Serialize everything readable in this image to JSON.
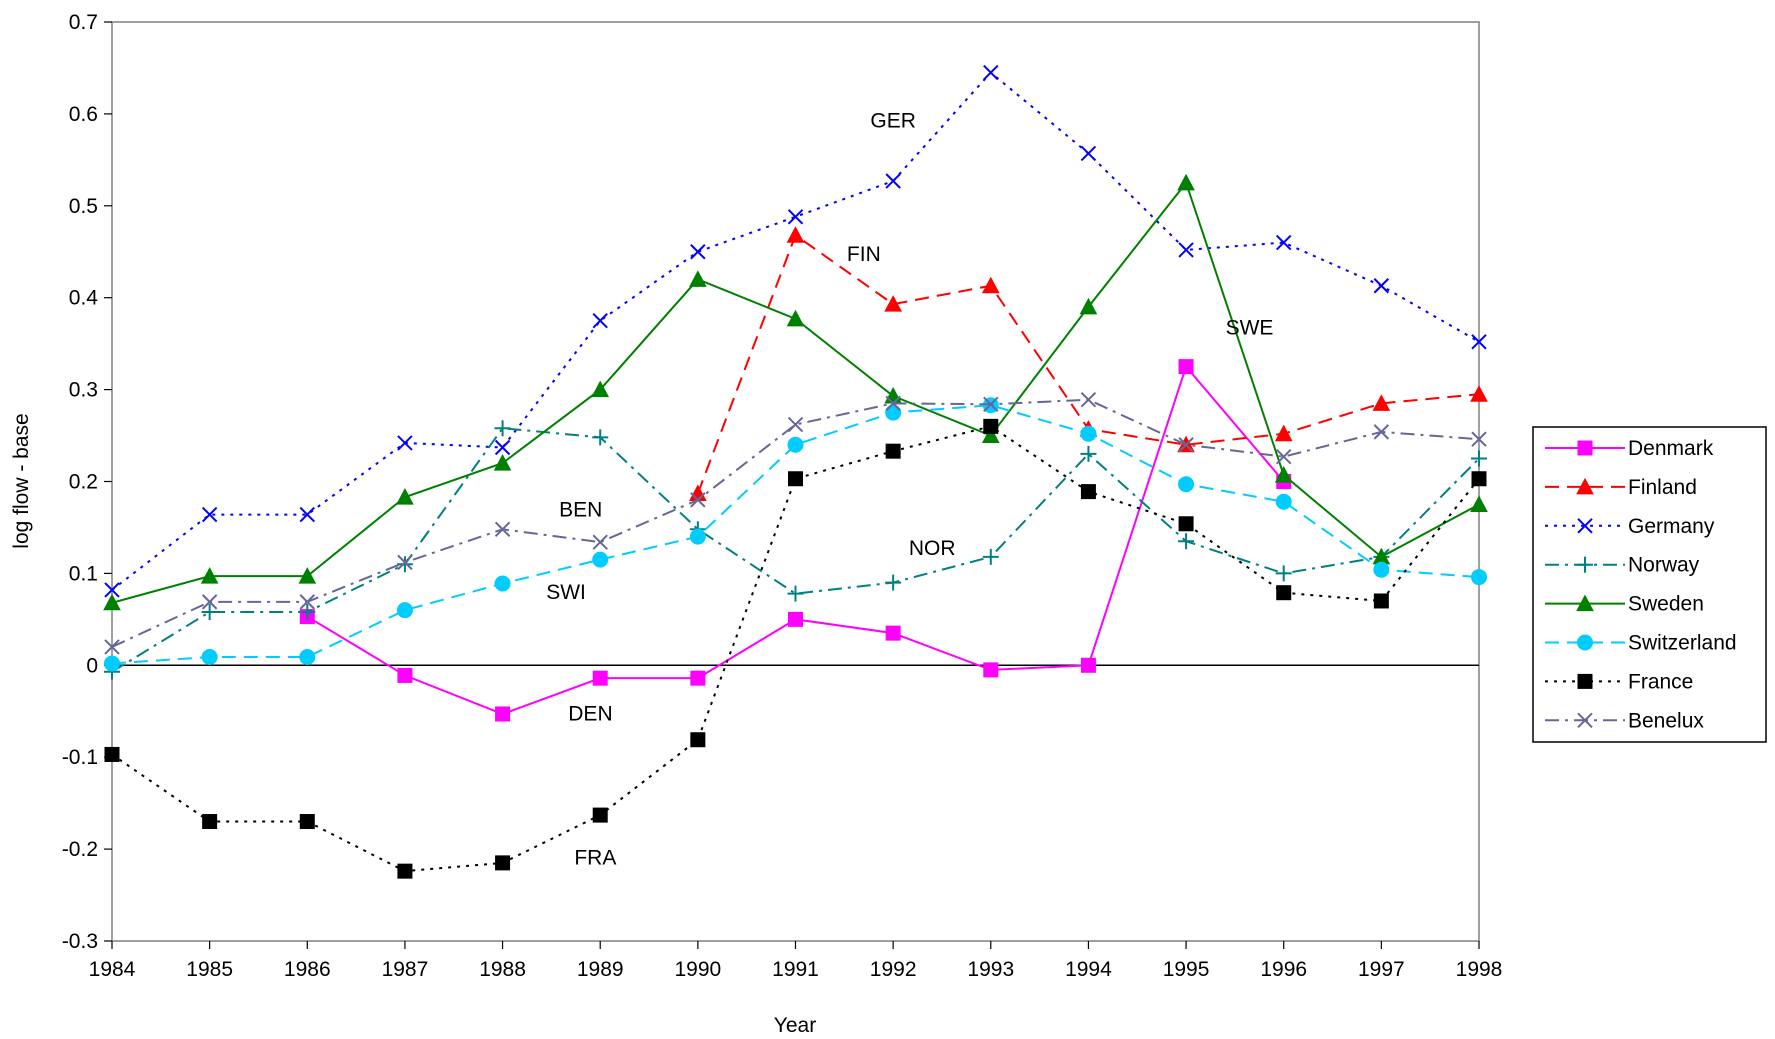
{
  "chart_data": {
    "type": "line",
    "title": "",
    "xlabel": "Year",
    "ylabel": "log flow - base",
    "x": [
      1984,
      1985,
      1986,
      1987,
      1988,
      1989,
      1990,
      1991,
      1992,
      1993,
      1994,
      1995,
      1996,
      1997,
      1998
    ],
    "x_tick_labels": [
      "1984",
      "1985",
      "1986",
      "1987",
      "1988",
      "1989",
      "1990",
      "1991",
      "1992",
      "1993",
      "1994",
      "1995",
      "1996",
      "1997",
      "1998"
    ],
    "ylim": [
      -0.3,
      0.7
    ],
    "y_ticks": [
      -0.3,
      -0.2,
      -0.1,
      0,
      0.1,
      0.2,
      0.3,
      0.4,
      0.5,
      0.6,
      0.7
    ],
    "y_tick_labels": [
      "-0.3",
      "-0.2",
      "-0.1",
      "0",
      "0.1",
      "0.2",
      "0.3",
      "0.4",
      "0.5",
      "0.6",
      "0.7"
    ],
    "grid": false,
    "zero_line": true,
    "legend_position": "right",
    "series": [
      {
        "name": "Denmark",
        "color": "#FF00FF",
        "dash": "solid",
        "marker": "square",
        "values": [
          null,
          null,
          0.053,
          -0.011,
          -0.053,
          -0.014,
          -0.014,
          0.05,
          0.035,
          -0.005,
          0.0,
          0.325,
          0.2,
          null,
          null
        ]
      },
      {
        "name": "Finland",
        "color": "#FF0000",
        "dash": "dashed",
        "marker": "triangle",
        "values": [
          null,
          null,
          null,
          null,
          null,
          null,
          0.187,
          0.468,
          0.393,
          0.413,
          0.257,
          0.24,
          0.252,
          0.285,
          0.295
        ]
      },
      {
        "name": "Germany",
        "color": "#0000FF",
        "dash": "dotted",
        "marker": "x",
        "values": [
          0.082,
          0.164,
          0.164,
          0.242,
          0.237,
          0.375,
          0.45,
          0.488,
          0.527,
          0.645,
          0.557,
          0.452,
          0.46,
          0.413,
          0.352
        ]
      },
      {
        "name": "Norway",
        "color": "#008080",
        "dash": "dashdot",
        "marker": "plus",
        "values": [
          -0.007,
          0.058,
          0.058,
          0.11,
          0.258,
          0.248,
          0.148,
          0.078,
          0.09,
          0.118,
          0.23,
          0.135,
          0.1,
          0.118,
          0.225
        ]
      },
      {
        "name": "Sweden",
        "color": "#008000",
        "dash": "solid",
        "marker": "triangle",
        "values": [
          0.068,
          0.097,
          0.097,
          0.183,
          0.22,
          0.3,
          0.42,
          0.377,
          0.293,
          0.25,
          0.39,
          0.525,
          0.207,
          0.118,
          0.175
        ]
      },
      {
        "name": "Switzerland",
        "color": "#00CCFF",
        "dash": "dashed",
        "marker": "circle",
        "values": [
          0.002,
          0.009,
          0.009,
          0.06,
          0.089,
          0.115,
          0.14,
          0.24,
          0.275,
          0.283,
          0.252,
          0.197,
          0.178,
          0.104,
          0.096
        ]
      },
      {
        "name": "France",
        "color": "#000000",
        "dash": "dotted",
        "marker": "square",
        "values": [
          -0.097,
          -0.17,
          -0.17,
          -0.224,
          -0.215,
          -0.163,
          -0.081,
          0.203,
          0.233,
          0.26,
          0.189,
          0.154,
          0.079,
          0.07,
          0.203
        ]
      },
      {
        "name": "Benelux",
        "color": "#666699",
        "dash": "dashdot",
        "marker": "x",
        "values": [
          0.02,
          0.069,
          0.069,
          0.112,
          0.148,
          0.134,
          0.18,
          0.262,
          0.285,
          0.284,
          0.289,
          0.24,
          0.227,
          0.254,
          0.246
        ]
      }
    ],
    "annotations": [
      {
        "text": "GER",
        "x": 1992,
        "y": 0.585
      },
      {
        "text": "FIN",
        "x": 1991.7,
        "y": 0.44
      },
      {
        "text": "SWE",
        "x": 1995.65,
        "y": 0.36
      },
      {
        "text": "BEN",
        "x": 1988.8,
        "y": 0.162
      },
      {
        "text": "NOR",
        "x": 1992.4,
        "y": 0.12
      },
      {
        "text": "SWI",
        "x": 1988.65,
        "y": 0.072
      },
      {
        "text": "DEN",
        "x": 1988.9,
        "y": -0.06
      },
      {
        "text": "FRA",
        "x": 1988.95,
        "y": -0.217
      }
    ]
  }
}
